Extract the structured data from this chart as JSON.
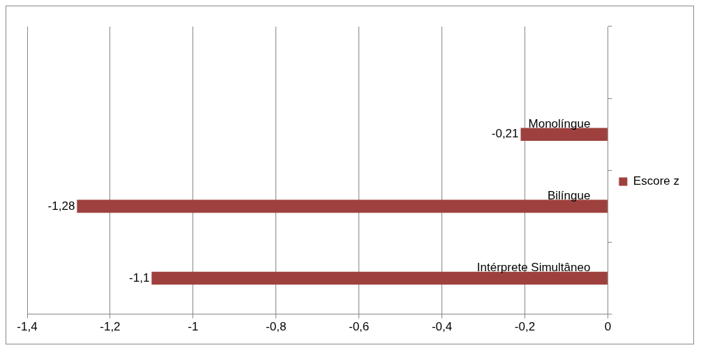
{
  "chart_data": {
    "type": "bar",
    "orientation": "horizontal",
    "categories": [
      null,
      "Monolíngue",
      "Bilíngue",
      "Intérprete Simultâneo"
    ],
    "series": [
      {
        "name": "Escore z",
        "color": "#9e413e",
        "values": [
          null,
          -0.21,
          -1.28,
          -1.1
        ],
        "value_labels": [
          null,
          "-0,21",
          "-1,28",
          "-1,1"
        ]
      }
    ],
    "xlim": [
      -1.4,
      0
    ],
    "xticks": [
      {
        "value": -1.4,
        "label": "-1,4"
      },
      {
        "value": -1.2,
        "label": "-1,2"
      },
      {
        "value": -1,
        "label": "-1"
      },
      {
        "value": -0.8,
        "label": "-0,8"
      },
      {
        "value": -0.6,
        "label": "-0,6"
      },
      {
        "value": -0.4,
        "label": "-0,4"
      },
      {
        "value": -0.2,
        "label": "-0,2"
      },
      {
        "value": 0,
        "label": "0"
      }
    ],
    "grid": "x",
    "legend": "right",
    "tick_labels": "x"
  }
}
